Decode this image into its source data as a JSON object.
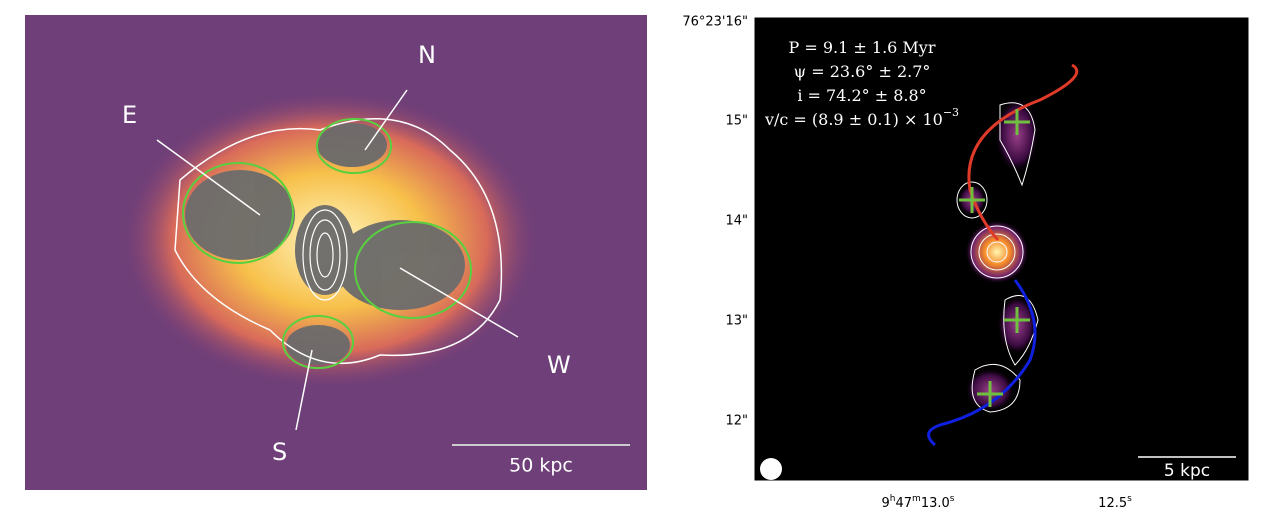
{
  "left_panel": {
    "labels": {
      "east": "E",
      "north": "N",
      "west": "W",
      "south": "S"
    },
    "scale_bar": "50 kpc"
  },
  "right_panel": {
    "annotations": [
      [
        "P = 9.1 ± 1.6 Myr"
      ],
      [
        "ψ = 23.6° ± 2.7°"
      ],
      [
        "i = 74.2° ± 8.8°"
      ],
      [
        "v/c = (8.9 ± 0.1) × 10",
        "−3"
      ]
    ],
    "y_tick_labels": [
      "76°23'16\"",
      "15\"",
      "14\"",
      "13\"",
      "12\""
    ],
    "x_tick_labels": [
      [
        "9",
        "h",
        "47",
        "m",
        "13.0",
        "s"
      ],
      [
        "12.5",
        "s"
      ]
    ],
    "scale_bar": "5 kpc"
  }
}
